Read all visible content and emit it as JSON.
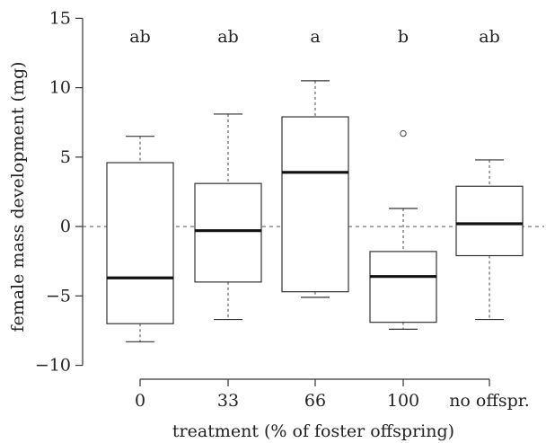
{
  "chart_data": {
    "type": "boxplot",
    "xlabel": "treatment (% of foster offspring)",
    "ylabel": "female mass development (mg)",
    "ylim": [
      -11,
      15.8
    ],
    "yticks": [
      -10,
      -5,
      0,
      5,
      10,
      15
    ],
    "ytick_labels": [
      "−10",
      "−5",
      "0",
      "5",
      "10",
      "15"
    ],
    "reference_line": 0,
    "reference_line_style": "dashed",
    "categories": [
      "0",
      "33",
      "66",
      "100",
      "no offspr."
    ],
    "boxes": [
      {
        "category": "0",
        "letter": "ab",
        "whisker_low": -8.3,
        "q1": -7.0,
        "median": -3.7,
        "q3": 4.6,
        "whisker_high": 6.5,
        "outliers": []
      },
      {
        "category": "33",
        "letter": "ab",
        "whisker_low": -6.7,
        "q1": -4.0,
        "median": -0.3,
        "q3": 3.1,
        "whisker_high": 8.1,
        "outliers": []
      },
      {
        "category": "66",
        "letter": "a",
        "whisker_low": -5.1,
        "q1": -4.7,
        "median": 3.9,
        "q3": 7.9,
        "whisker_high": 10.5,
        "outliers": []
      },
      {
        "category": "100",
        "letter": "b",
        "whisker_low": -7.4,
        "q1": -6.9,
        "median": -3.6,
        "q3": -1.8,
        "whisker_high": 1.3,
        "outliers": [
          6.7
        ]
      },
      {
        "category": "no offspr.",
        "letter": "ab",
        "whisker_low": -6.7,
        "q1": -2.1,
        "median": 0.2,
        "q3": 2.9,
        "whisker_high": 4.8,
        "outliers": []
      }
    ]
  }
}
